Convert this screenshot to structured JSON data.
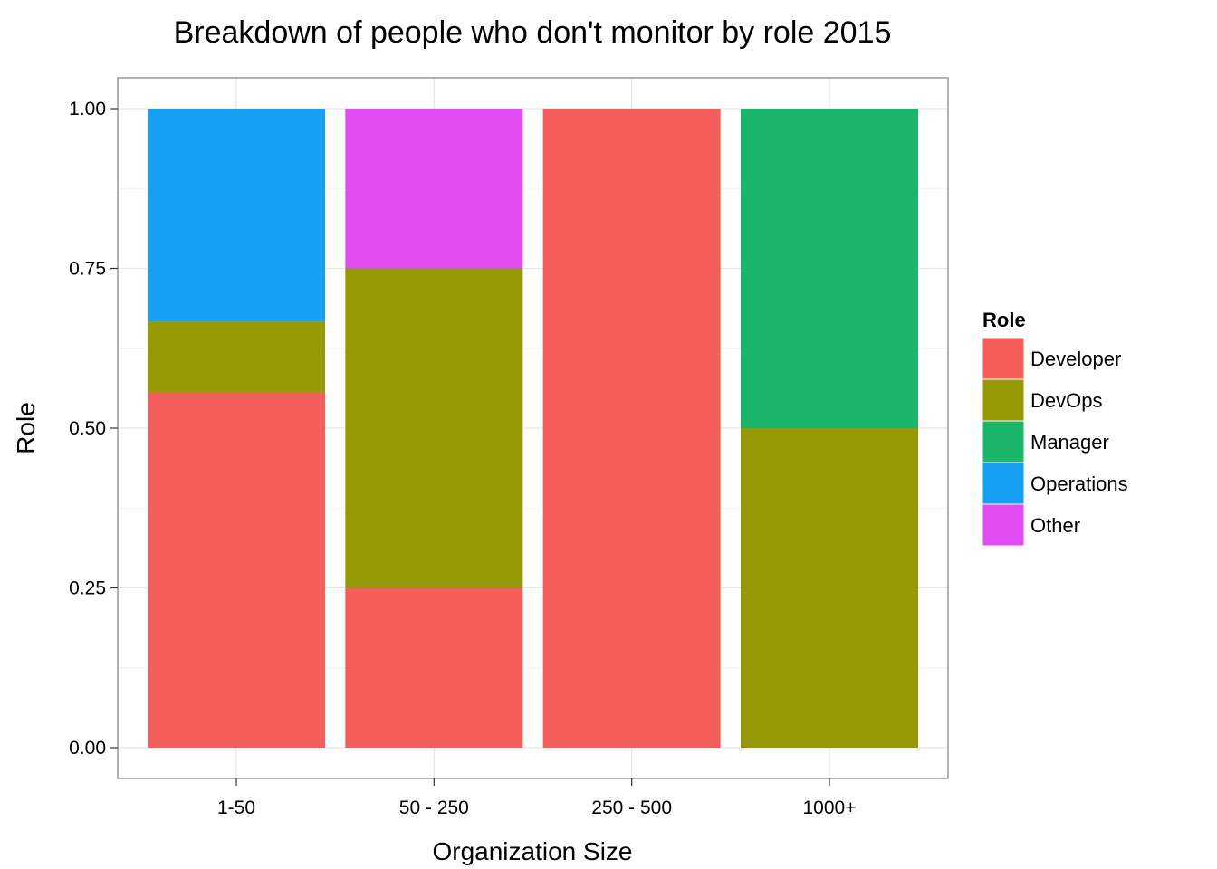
{
  "chart_data": {
    "type": "bar",
    "stacked": true,
    "title": "Breakdown of people who don't monitor by role 2015",
    "xlabel": "Organization Size",
    "ylabel": "Role",
    "ylim": [
      0,
      1
    ],
    "yticks": [
      "0.00",
      "0.25",
      "0.50",
      "0.75",
      "1.00"
    ],
    "categories": [
      "1-50",
      "50 - 250",
      "250 - 500",
      "1000+"
    ],
    "series": [
      {
        "name": "Developer",
        "color": "#F35E5A",
        "values": [
          0.556,
          0.25,
          1.0,
          0.0
        ]
      },
      {
        "name": "DevOps",
        "color": "#949904",
        "values": [
          0.111,
          0.5,
          0.0,
          0.5
        ]
      },
      {
        "name": "Manager",
        "color": "#1AB66C",
        "values": [
          0.0,
          0.0,
          0.0,
          0.5
        ]
      },
      {
        "name": "Operations",
        "color": "#17A0F2",
        "values": [
          0.333,
          0.0,
          0.0,
          0.0
        ]
      },
      {
        "name": "Other",
        "color": "#E04BF2",
        "values": [
          0.0,
          0.25,
          0.0,
          0.0
        ]
      }
    ],
    "legend": {
      "title": "Role",
      "position": "right"
    },
    "grid": true
  }
}
